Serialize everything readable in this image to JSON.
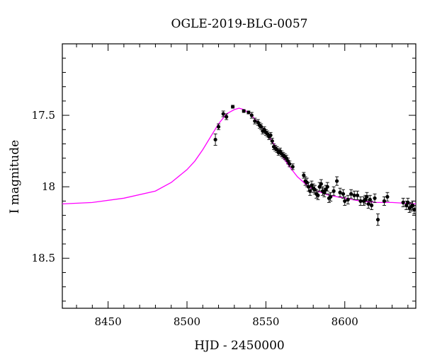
{
  "chart_data": {
    "type": "scatter",
    "title": "OGLE-2019-BLG-0057",
    "xlabel": "HJD - 2450000",
    "ylabel": "I magnitude",
    "xlim": [
      8421,
      8645
    ],
    "ylim": [
      18.85,
      17.0
    ],
    "y_inverted": true,
    "grid": false,
    "x_ticks": [
      8450,
      8500,
      8550,
      8600
    ],
    "x_tick_labels": [
      "8450",
      "8500",
      "8550",
      "8600"
    ],
    "y_ticks": [
      17.5,
      18,
      18.5
    ],
    "y_tick_labels": [
      "17.5",
      "18",
      "18.5"
    ],
    "model": {
      "name": "",
      "color": "#ff00ff",
      "x": [
        8421,
        8440,
        8460,
        8480,
        8490,
        8500,
        8505,
        8510,
        8515,
        8520,
        8525,
        8530,
        8533,
        8536,
        8540,
        8545,
        8550,
        8555,
        8560,
        8565,
        8570,
        8575,
        8580,
        8590,
        8600,
        8610,
        8620,
        8630,
        8645
      ],
      "y": [
        18.12,
        18.11,
        18.08,
        18.03,
        17.97,
        17.88,
        17.82,
        17.74,
        17.65,
        17.56,
        17.49,
        17.46,
        17.45,
        17.46,
        17.49,
        17.55,
        17.62,
        17.7,
        17.78,
        17.86,
        17.93,
        17.98,
        18.02,
        18.06,
        18.08,
        18.1,
        18.11,
        18.11,
        18.12
      ]
    },
    "series": [
      {
        "name": "",
        "color": "#000000",
        "x": [
          8518,
          8520,
          8523,
          8525,
          8529,
          8536,
          8539,
          8541,
          8543,
          8545,
          8546,
          8547,
          8548,
          8549,
          8550,
          8551,
          8552,
          8553,
          8554,
          8555,
          8556,
          8557,
          8558,
          8559,
          8560,
          8561,
          8562,
          8563,
          8564,
          8565,
          8567,
          8574,
          8575,
          8576,
          8577,
          8578,
          8579,
          8580,
          8581,
          8582,
          8583,
          8584,
          8585,
          8586,
          8587,
          8588,
          8589,
          8590,
          8591,
          8593,
          8595,
          8597,
          8599,
          8600,
          8602,
          8604,
          8606,
          8608,
          8610,
          8612,
          8613,
          8614,
          8615,
          8616,
          8617,
          8619,
          8621,
          8625,
          8627,
          8637,
          8639,
          8640,
          8641,
          8642,
          8643,
          8644
        ],
        "y": [
          17.67,
          17.58,
          17.49,
          17.51,
          17.44,
          17.47,
          17.48,
          17.5,
          17.54,
          17.55,
          17.57,
          17.58,
          17.61,
          17.6,
          17.62,
          17.63,
          17.65,
          17.64,
          17.68,
          17.72,
          17.73,
          17.74,
          17.76,
          17.75,
          17.77,
          17.78,
          17.79,
          17.8,
          17.82,
          17.84,
          17.86,
          17.92,
          17.96,
          17.97,
          18.0,
          18.03,
          17.99,
          18.01,
          18.02,
          18.05,
          18.06,
          18.0,
          17.98,
          18.03,
          18.04,
          18.02,
          18.0,
          18.08,
          18.07,
          18.03,
          17.96,
          18.04,
          18.05,
          18.1,
          18.09,
          18.05,
          18.06,
          18.06,
          18.1,
          18.1,
          18.09,
          18.07,
          18.12,
          18.09,
          18.13,
          18.08,
          18.23,
          18.1,
          18.07,
          18.11,
          18.13,
          18.11,
          18.15,
          18.14,
          18.13,
          18.16
        ],
        "err": [
          0.04,
          0.02,
          0.02,
          0.02,
          0.01,
          0.01,
          0.01,
          0.02,
          0.02,
          0.02,
          0.02,
          0.02,
          0.02,
          0.02,
          0.02,
          0.02,
          0.02,
          0.02,
          0.02,
          0.02,
          0.02,
          0.02,
          0.02,
          0.02,
          0.02,
          0.02,
          0.02,
          0.02,
          0.02,
          0.02,
          0.02,
          0.02,
          0.03,
          0.03,
          0.03,
          0.03,
          0.03,
          0.03,
          0.03,
          0.03,
          0.03,
          0.03,
          0.03,
          0.03,
          0.03,
          0.03,
          0.03,
          0.03,
          0.03,
          0.03,
          0.03,
          0.03,
          0.03,
          0.03,
          0.03,
          0.03,
          0.03,
          0.03,
          0.03,
          0.03,
          0.03,
          0.03,
          0.03,
          0.03,
          0.03,
          0.03,
          0.04,
          0.03,
          0.03,
          0.03,
          0.03,
          0.03,
          0.03,
          0.03,
          0.03,
          0.03
        ]
      }
    ]
  }
}
